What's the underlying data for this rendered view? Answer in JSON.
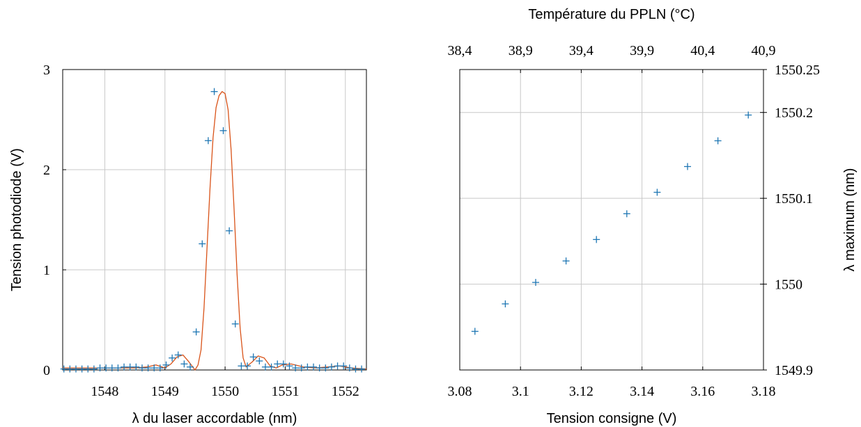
{
  "chart_data": [
    {
      "type": "scatter",
      "xlabel": "λ du laser accordable (nm)",
      "ylabel": "Tension photodiode (V)",
      "xlim": [
        1547.3,
        1552.35
      ],
      "ylim": [
        0,
        3
      ],
      "xticks": [
        "1548",
        "1549",
        "1550",
        "1551",
        "1552"
      ],
      "yticks": [
        "0",
        "1",
        "2",
        "3"
      ],
      "grid": true,
      "colors": {
        "points": "#1f77b4",
        "fit": "#d95319"
      },
      "series": [
        {
          "style": "markers-plus",
          "x": [
            1547.32,
            1547.42,
            1547.52,
            1547.62,
            1547.72,
            1547.82,
            1547.92,
            1548.02,
            1548.12,
            1548.22,
            1548.32,
            1548.42,
            1548.52,
            1548.62,
            1548.72,
            1548.82,
            1548.92,
            1549.02,
            1549.12,
            1549.22,
            1549.32,
            1549.42,
            1549.52,
            1549.62,
            1549.72,
            1549.82,
            1549.97,
            1550.07,
            1550.17,
            1550.27,
            1550.37,
            1550.47,
            1550.57,
            1550.67,
            1550.77,
            1550.87,
            1550.97,
            1551.07,
            1551.17,
            1551.27,
            1551.37,
            1551.47,
            1551.57,
            1551.67,
            1551.77,
            1551.87,
            1551.97,
            1552.07,
            1552.17,
            1552.27
          ],
          "y": [
            0.01,
            0.01,
            0.01,
            0.01,
            0.01,
            0.01,
            0.02,
            0.02,
            0.02,
            0.02,
            0.03,
            0.03,
            0.03,
            0.02,
            0.02,
            0.02,
            0.02,
            0.05,
            0.12,
            0.15,
            0.06,
            0.03,
            0.38,
            1.26,
            2.29,
            2.78,
            2.39,
            1.39,
            0.46,
            0.04,
            0.04,
            0.13,
            0.09,
            0.03,
            0.03,
            0.06,
            0.06,
            0.04,
            0.02,
            0.02,
            0.03,
            0.03,
            0.02,
            0.02,
            0.03,
            0.04,
            0.04,
            0.02,
            0.01,
            0.01
          ]
        },
        {
          "style": "line",
          "x": [
            1547.3,
            1547.5,
            1547.7,
            1547.9,
            1548.1,
            1548.3,
            1548.5,
            1548.7,
            1548.85,
            1549.0,
            1549.1,
            1549.2,
            1549.3,
            1549.4,
            1549.5,
            1549.55,
            1549.6,
            1549.65,
            1549.7,
            1549.75,
            1549.8,
            1549.85,
            1549.9,
            1549.95,
            1550.0,
            1550.05,
            1550.1,
            1550.15,
            1550.2,
            1550.25,
            1550.3,
            1550.35,
            1550.45,
            1550.55,
            1550.65,
            1550.75,
            1550.85,
            1550.95,
            1551.1,
            1551.3,
            1551.5,
            1551.7,
            1551.9,
            1552.1,
            1552.35
          ],
          "y": [
            0.02,
            0.02,
            0.02,
            0.02,
            0.02,
            0.02,
            0.02,
            0.03,
            0.05,
            0.02,
            0.06,
            0.13,
            0.15,
            0.08,
            0.0,
            0.05,
            0.2,
            0.62,
            1.22,
            1.82,
            2.32,
            2.62,
            2.74,
            2.78,
            2.76,
            2.6,
            2.2,
            1.6,
            0.95,
            0.42,
            0.12,
            0.03,
            0.08,
            0.14,
            0.12,
            0.04,
            0.02,
            0.05,
            0.06,
            0.03,
            0.02,
            0.03,
            0.04,
            0.02,
            0.01
          ]
        }
      ]
    },
    {
      "type": "scatter",
      "xlabel": "Tension consigne (V)",
      "ylabel": "λ maximum (nm)",
      "x2label": "Température du PPLN (°C)",
      "xlim": [
        3.08,
        3.18
      ],
      "ylim": [
        1549.9,
        1550.25
      ],
      "x2lim": [
        38.4,
        40.9
      ],
      "xticks": [
        "3.08",
        "3.1",
        "3.12",
        "3.14",
        "3.16",
        "3.18"
      ],
      "yticks": [
        "1549.9",
        "1550",
        "1550.1",
        "1550.2",
        "1550.25"
      ],
      "x2ticks": [
        "38,4",
        "38,9",
        "39,4",
        "39,9",
        "40,4",
        "40,9"
      ],
      "grid": true,
      "colors": {
        "points": "#1f77b4"
      },
      "series": [
        {
          "style": "markers-plus",
          "x": [
            3.085,
            3.095,
            3.105,
            3.115,
            3.125,
            3.135,
            3.145,
            3.155,
            3.165,
            3.175
          ],
          "y": [
            1549.945,
            1549.977,
            1550.002,
            1550.027,
            1550.052,
            1550.082,
            1550.107,
            1550.137,
            1550.167,
            1550.197
          ]
        }
      ]
    }
  ]
}
